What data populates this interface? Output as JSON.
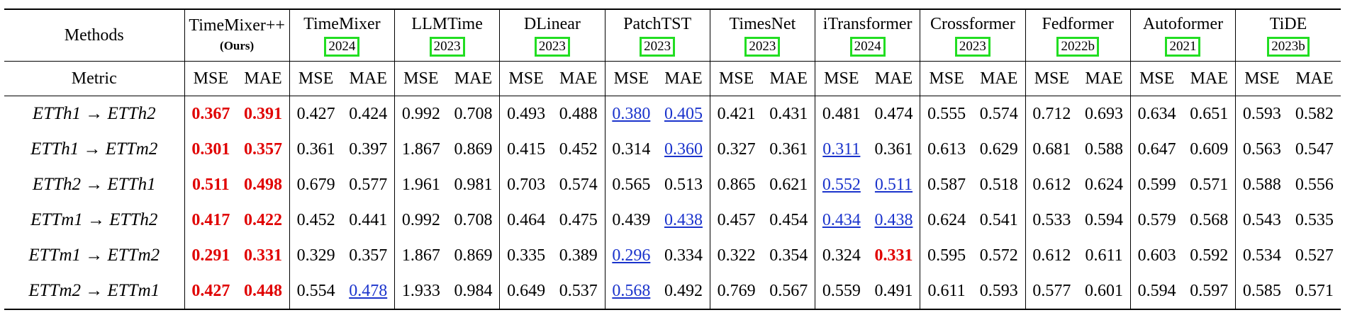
{
  "header": {
    "methods_label": "Methods",
    "metric_label": "Metric",
    "metrics": [
      "MSE",
      "MAE"
    ],
    "methods": [
      {
        "name": "TimeMixer++",
        "note": "(Ours)"
      },
      {
        "name": "TimeMixer",
        "tag": "2024"
      },
      {
        "name": "LLMTime",
        "tag": "2023"
      },
      {
        "name": "DLinear",
        "tag": "2023"
      },
      {
        "name": "PatchTST",
        "tag": "2023"
      },
      {
        "name": "TimesNet",
        "tag": "2023"
      },
      {
        "name": "iTransformer",
        "tag": "2024"
      },
      {
        "name": "Crossformer",
        "tag": "2023"
      },
      {
        "name": "Fedformer",
        "tag": "2022b"
      },
      {
        "name": "Autoformer",
        "tag": "2021"
      },
      {
        "name": "TiDE",
        "tag": "2023b"
      }
    ]
  },
  "table": {
    "rows": [
      {
        "name": "ETTh1 → ETTh2",
        "values": [
          "0.367",
          "0.391",
          "0.427",
          "0.424",
          "0.992",
          "0.708",
          "0.493",
          "0.488",
          "0.380",
          "0.405",
          "0.421",
          "0.431",
          "0.481",
          "0.474",
          "0.555",
          "0.574",
          "0.712",
          "0.693",
          "0.634",
          "0.651",
          "0.593",
          "0.582"
        ],
        "best": [
          0,
          1
        ],
        "second": [
          8,
          9
        ]
      },
      {
        "name": "ETTh1 → ETTm2",
        "values": [
          "0.301",
          "0.357",
          "0.361",
          "0.397",
          "1.867",
          "0.869",
          "0.415",
          "0.452",
          "0.314",
          "0.360",
          "0.327",
          "0.361",
          "0.311",
          "0.361",
          "0.613",
          "0.629",
          "0.681",
          "0.588",
          "0.647",
          "0.609",
          "0.563",
          "0.547"
        ],
        "best": [
          0,
          1
        ],
        "second": [
          9,
          12
        ]
      },
      {
        "name": "ETTh2 → ETTh1",
        "values": [
          "0.511",
          "0.498",
          "0.679",
          "0.577",
          "1.961",
          "0.981",
          "0.703",
          "0.574",
          "0.565",
          "0.513",
          "0.865",
          "0.621",
          "0.552",
          "0.511",
          "0.587",
          "0.518",
          "0.612",
          "0.624",
          "0.599",
          "0.571",
          "0.588",
          "0.556"
        ],
        "best": [
          0,
          1
        ],
        "second": [
          12,
          13
        ]
      },
      {
        "name": "ETTm1 → ETTh2",
        "values": [
          "0.417",
          "0.422",
          "0.452",
          "0.441",
          "0.992",
          "0.708",
          "0.464",
          "0.475",
          "0.439",
          "0.438",
          "0.457",
          "0.454",
          "0.434",
          "0.438",
          "0.624",
          "0.541",
          "0.533",
          "0.594",
          "0.579",
          "0.568",
          "0.543",
          "0.535"
        ],
        "best": [
          0,
          1
        ],
        "second": [
          9,
          12,
          13
        ]
      },
      {
        "name": "ETTm1 → ETTm2",
        "values": [
          "0.291",
          "0.331",
          "0.329",
          "0.357",
          "1.867",
          "0.869",
          "0.335",
          "0.389",
          "0.296",
          "0.334",
          "0.322",
          "0.354",
          "0.324",
          "0.331",
          "0.595",
          "0.572",
          "0.612",
          "0.611",
          "0.603",
          "0.592",
          "0.534",
          "0.527"
        ],
        "best": [
          0,
          1,
          13
        ],
        "second": [
          8
        ]
      },
      {
        "name": "ETTm2 → ETTm1",
        "values": [
          "0.427",
          "0.448",
          "0.554",
          "0.478",
          "1.933",
          "0.984",
          "0.649",
          "0.537",
          "0.568",
          "0.492",
          "0.769",
          "0.567",
          "0.559",
          "0.491",
          "0.611",
          "0.593",
          "0.577",
          "0.601",
          "0.594",
          "0.597",
          "0.585",
          "0.571"
        ],
        "best": [
          0,
          1
        ],
        "second": [
          3,
          8
        ]
      }
    ]
  }
}
